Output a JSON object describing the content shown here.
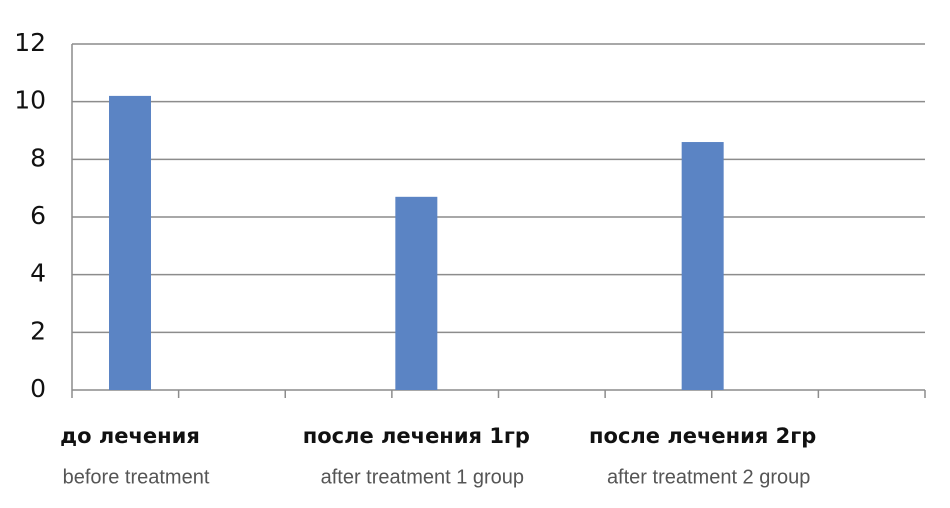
{
  "chart_data": {
    "type": "bar",
    "categories": [
      "до лечения",
      "после лечения 1гр",
      "после лечения 2гр"
    ],
    "categories_en": [
      "before treatment",
      "after treatment 1 group",
      "after treatment 2 group"
    ],
    "values": [
      10.2,
      6.7,
      8.6
    ],
    "color": "#5b84c4",
    "ylim": [
      0,
      12
    ],
    "yticks": [
      0,
      2,
      4,
      6,
      8,
      10,
      12
    ],
    "grid": true
  }
}
